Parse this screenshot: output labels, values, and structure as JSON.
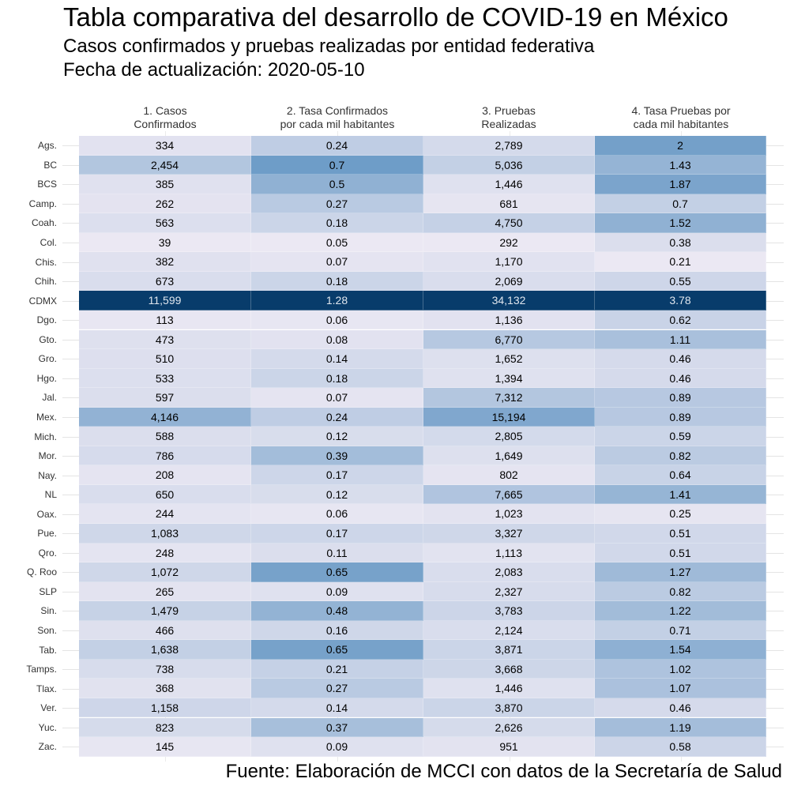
{
  "title": "Tabla comparativa del desarrollo de COVID-19 en México",
  "subtitle": "Casos confirmados y pruebas realizadas por entidad federativa",
  "date_line": "Fecha de actualización: 2020-05-10",
  "source": "Fuente: Elaboración de MCCI con datos de la Secretaría de Salud",
  "colors": {
    "low": "#ebe8f3",
    "mid": "#6a9ac6",
    "high": "#083c6b",
    "text_dark": "#000000",
    "text_light": "#dfe6ee"
  },
  "chart_data": {
    "type": "heatmap",
    "title": "Tabla comparativa del desarrollo de COVID-19 en México",
    "xlabel": "",
    "ylabel": "",
    "columns": [
      {
        "line1": "1. Casos",
        "line2": "Confirmados"
      },
      {
        "line1": "2. Tasa Confirmados",
        "line2": "por cada mil habitantes"
      },
      {
        "line1": "3. Pruebas",
        "line2": "Realizadas"
      },
      {
        "line1": "4. Tasa Pruebas por",
        "line2": "cada mil habitantes"
      }
    ],
    "rows": [
      {
        "state": "Ags.",
        "values": [
          334,
          0.24,
          2789,
          2
        ],
        "labels": [
          "334",
          "0.24",
          "2,789",
          "2"
        ]
      },
      {
        "state": "BC",
        "values": [
          2454,
          0.7,
          5036,
          1.43
        ],
        "labels": [
          "2,454",
          "0.7",
          "5,036",
          "1.43"
        ]
      },
      {
        "state": "BCS",
        "values": [
          385,
          0.5,
          1446,
          1.87
        ],
        "labels": [
          "385",
          "0.5",
          "1,446",
          "1.87"
        ]
      },
      {
        "state": "Camp.",
        "values": [
          262,
          0.27,
          681,
          0.7
        ],
        "labels": [
          "262",
          "0.27",
          "681",
          "0.7"
        ]
      },
      {
        "state": "Coah.",
        "values": [
          563,
          0.18,
          4750,
          1.52
        ],
        "labels": [
          "563",
          "0.18",
          "4,750",
          "1.52"
        ]
      },
      {
        "state": "Col.",
        "values": [
          39,
          0.05,
          292,
          0.38
        ],
        "labels": [
          "39",
          "0.05",
          "292",
          "0.38"
        ]
      },
      {
        "state": "Chis.",
        "values": [
          382,
          0.07,
          1170,
          0.21
        ],
        "labels": [
          "382",
          "0.07",
          "1,170",
          "0.21"
        ]
      },
      {
        "state": "Chih.",
        "values": [
          673,
          0.18,
          2069,
          0.55
        ],
        "labels": [
          "673",
          "0.18",
          "2,069",
          "0.55"
        ]
      },
      {
        "state": "CDMX",
        "values": [
          11599,
          1.28,
          34132,
          3.78
        ],
        "labels": [
          "11,599",
          "1.28",
          "34,132",
          "3.78"
        ]
      },
      {
        "state": "Dgo.",
        "values": [
          113,
          0.06,
          1136,
          0.62
        ],
        "labels": [
          "113",
          "0.06",
          "1,136",
          "0.62"
        ]
      },
      {
        "state": "Gto.",
        "values": [
          473,
          0.08,
          6770,
          1.11
        ],
        "labels": [
          "473",
          "0.08",
          "6,770",
          "1.11"
        ]
      },
      {
        "state": "Gro.",
        "values": [
          510,
          0.14,
          1652,
          0.46
        ],
        "labels": [
          "510",
          "0.14",
          "1,652",
          "0.46"
        ]
      },
      {
        "state": "Hgo.",
        "values": [
          533,
          0.18,
          1394,
          0.46
        ],
        "labels": [
          "533",
          "0.18",
          "1,394",
          "0.46"
        ]
      },
      {
        "state": "Jal.",
        "values": [
          597,
          0.07,
          7312,
          0.89
        ],
        "labels": [
          "597",
          "0.07",
          "7,312",
          "0.89"
        ]
      },
      {
        "state": "Mex.",
        "values": [
          4146,
          0.24,
          15194,
          0.89
        ],
        "labels": [
          "4,146",
          "0.24",
          "15,194",
          "0.89"
        ]
      },
      {
        "state": "Mich.",
        "values": [
          588,
          0.12,
          2805,
          0.59
        ],
        "labels": [
          "588",
          "0.12",
          "2,805",
          "0.59"
        ]
      },
      {
        "state": "Mor.",
        "values": [
          786,
          0.39,
          1649,
          0.82
        ],
        "labels": [
          "786",
          "0.39",
          "1,649",
          "0.82"
        ]
      },
      {
        "state": "Nay.",
        "values": [
          208,
          0.17,
          802,
          0.64
        ],
        "labels": [
          "208",
          "0.17",
          "802",
          "0.64"
        ]
      },
      {
        "state": "NL",
        "values": [
          650,
          0.12,
          7665,
          1.41
        ],
        "labels": [
          "650",
          "0.12",
          "7,665",
          "1.41"
        ]
      },
      {
        "state": "Oax.",
        "values": [
          244,
          0.06,
          1023,
          0.25
        ],
        "labels": [
          "244",
          "0.06",
          "1,023",
          "0.25"
        ]
      },
      {
        "state": "Pue.",
        "values": [
          1083,
          0.17,
          3327,
          0.51
        ],
        "labels": [
          "1,083",
          "0.17",
          "3,327",
          "0.51"
        ]
      },
      {
        "state": "Qro.",
        "values": [
          248,
          0.11,
          1113,
          0.51
        ],
        "labels": [
          "248",
          "0.11",
          "1,113",
          "0.51"
        ]
      },
      {
        "state": "Q. Roo",
        "values": [
          1072,
          0.65,
          2083,
          1.27
        ],
        "labels": [
          "1,072",
          "0.65",
          "2,083",
          "1.27"
        ]
      },
      {
        "state": "SLP",
        "values": [
          265,
          0.09,
          2327,
          0.82
        ],
        "labels": [
          "265",
          "0.09",
          "2,327",
          "0.82"
        ]
      },
      {
        "state": "Sin.",
        "values": [
          1479,
          0.48,
          3783,
          1.22
        ],
        "labels": [
          "1,479",
          "0.48",
          "3,783",
          "1.22"
        ]
      },
      {
        "state": "Son.",
        "values": [
          466,
          0.16,
          2124,
          0.71
        ],
        "labels": [
          "466",
          "0.16",
          "2,124",
          "0.71"
        ]
      },
      {
        "state": "Tab.",
        "values": [
          1638,
          0.65,
          3871,
          1.54
        ],
        "labels": [
          "1,638",
          "0.65",
          "3,871",
          "1.54"
        ]
      },
      {
        "state": "Tamps.",
        "values": [
          738,
          0.21,
          3668,
          1.02
        ],
        "labels": [
          "738",
          "0.21",
          "3,668",
          "1.02"
        ]
      },
      {
        "state": "Tlax.",
        "values": [
          368,
          0.27,
          1446,
          1.07
        ],
        "labels": [
          "368",
          "0.27",
          "1,446",
          "1.07"
        ]
      },
      {
        "state": "Ver.",
        "values": [
          1158,
          0.14,
          3870,
          0.46
        ],
        "labels": [
          "1,158",
          "0.14",
          "3,870",
          "0.46"
        ]
      },
      {
        "state": "Yuc.",
        "values": [
          823,
          0.37,
          2626,
          1.19
        ],
        "labels": [
          "823",
          "0.37",
          "2,626",
          "1.19"
        ]
      },
      {
        "state": "Zac.",
        "values": [
          145,
          0.09,
          951,
          0.58
        ],
        "labels": [
          "145",
          "0.09",
          "951",
          "0.58"
        ]
      }
    ],
    "grid": true,
    "legend": "none"
  }
}
